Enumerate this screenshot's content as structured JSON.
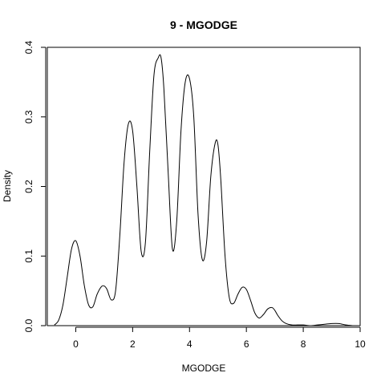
{
  "chart_data": {
    "type": "line",
    "title": "9 - MGODGE",
    "xlabel": "MGODGE",
    "ylabel": "Density",
    "xlim": [
      -1.0,
      10.0
    ],
    "ylim": [
      0.0,
      0.4
    ],
    "x_ticks": [
      0,
      2,
      4,
      6,
      8,
      10
    ],
    "y_ticks": [
      0.0,
      0.1,
      0.2,
      0.3,
      0.4
    ],
    "x_tick_labels": [
      "0",
      "2",
      "4",
      "6",
      "8",
      "10"
    ],
    "y_tick_labels": [
      "0.0",
      "0.1",
      "0.2",
      "0.3",
      "0.4"
    ],
    "grid": false,
    "series": [
      {
        "x": [
          -0.75,
          -0.6,
          -0.45,
          -0.3,
          -0.15,
          0.0,
          0.15,
          0.3,
          0.45,
          0.6,
          0.75,
          0.9,
          1.0,
          1.1,
          1.25,
          1.4,
          1.55,
          1.7,
          1.85,
          2.0,
          2.15,
          2.3,
          2.45,
          2.6,
          2.75,
          2.9,
          3.0,
          3.1,
          3.25,
          3.4,
          3.55,
          3.7,
          3.85,
          4.0,
          4.15,
          4.3,
          4.45,
          4.6,
          4.75,
          4.9,
          5.0,
          5.1,
          5.25,
          5.4,
          5.55,
          5.7,
          5.85,
          6.0,
          6.15,
          6.3,
          6.45,
          6.6,
          6.75,
          6.9,
          7.0,
          7.1,
          7.25,
          7.4,
          7.6,
          7.8,
          8.0,
          8.25,
          8.5,
          8.75,
          9.0,
          9.25,
          9.5,
          9.75
        ],
        "y": [
          0.001,
          0.008,
          0.03,
          0.07,
          0.11,
          0.122,
          0.1,
          0.058,
          0.03,
          0.027,
          0.045,
          0.056,
          0.057,
          0.052,
          0.037,
          0.05,
          0.13,
          0.235,
          0.29,
          0.28,
          0.2,
          0.107,
          0.12,
          0.25,
          0.36,
          0.385,
          0.385,
          0.34,
          0.22,
          0.11,
          0.15,
          0.28,
          0.35,
          0.355,
          0.3,
          0.16,
          0.095,
          0.12,
          0.215,
          0.262,
          0.26,
          0.21,
          0.1,
          0.04,
          0.032,
          0.045,
          0.055,
          0.052,
          0.036,
          0.018,
          0.011,
          0.016,
          0.024,
          0.026,
          0.022,
          0.015,
          0.007,
          0.003,
          0.001,
          0.001,
          0.001,
          0.0,
          0.001,
          0.002,
          0.003,
          0.003,
          0.001,
          0.0
        ]
      }
    ]
  }
}
